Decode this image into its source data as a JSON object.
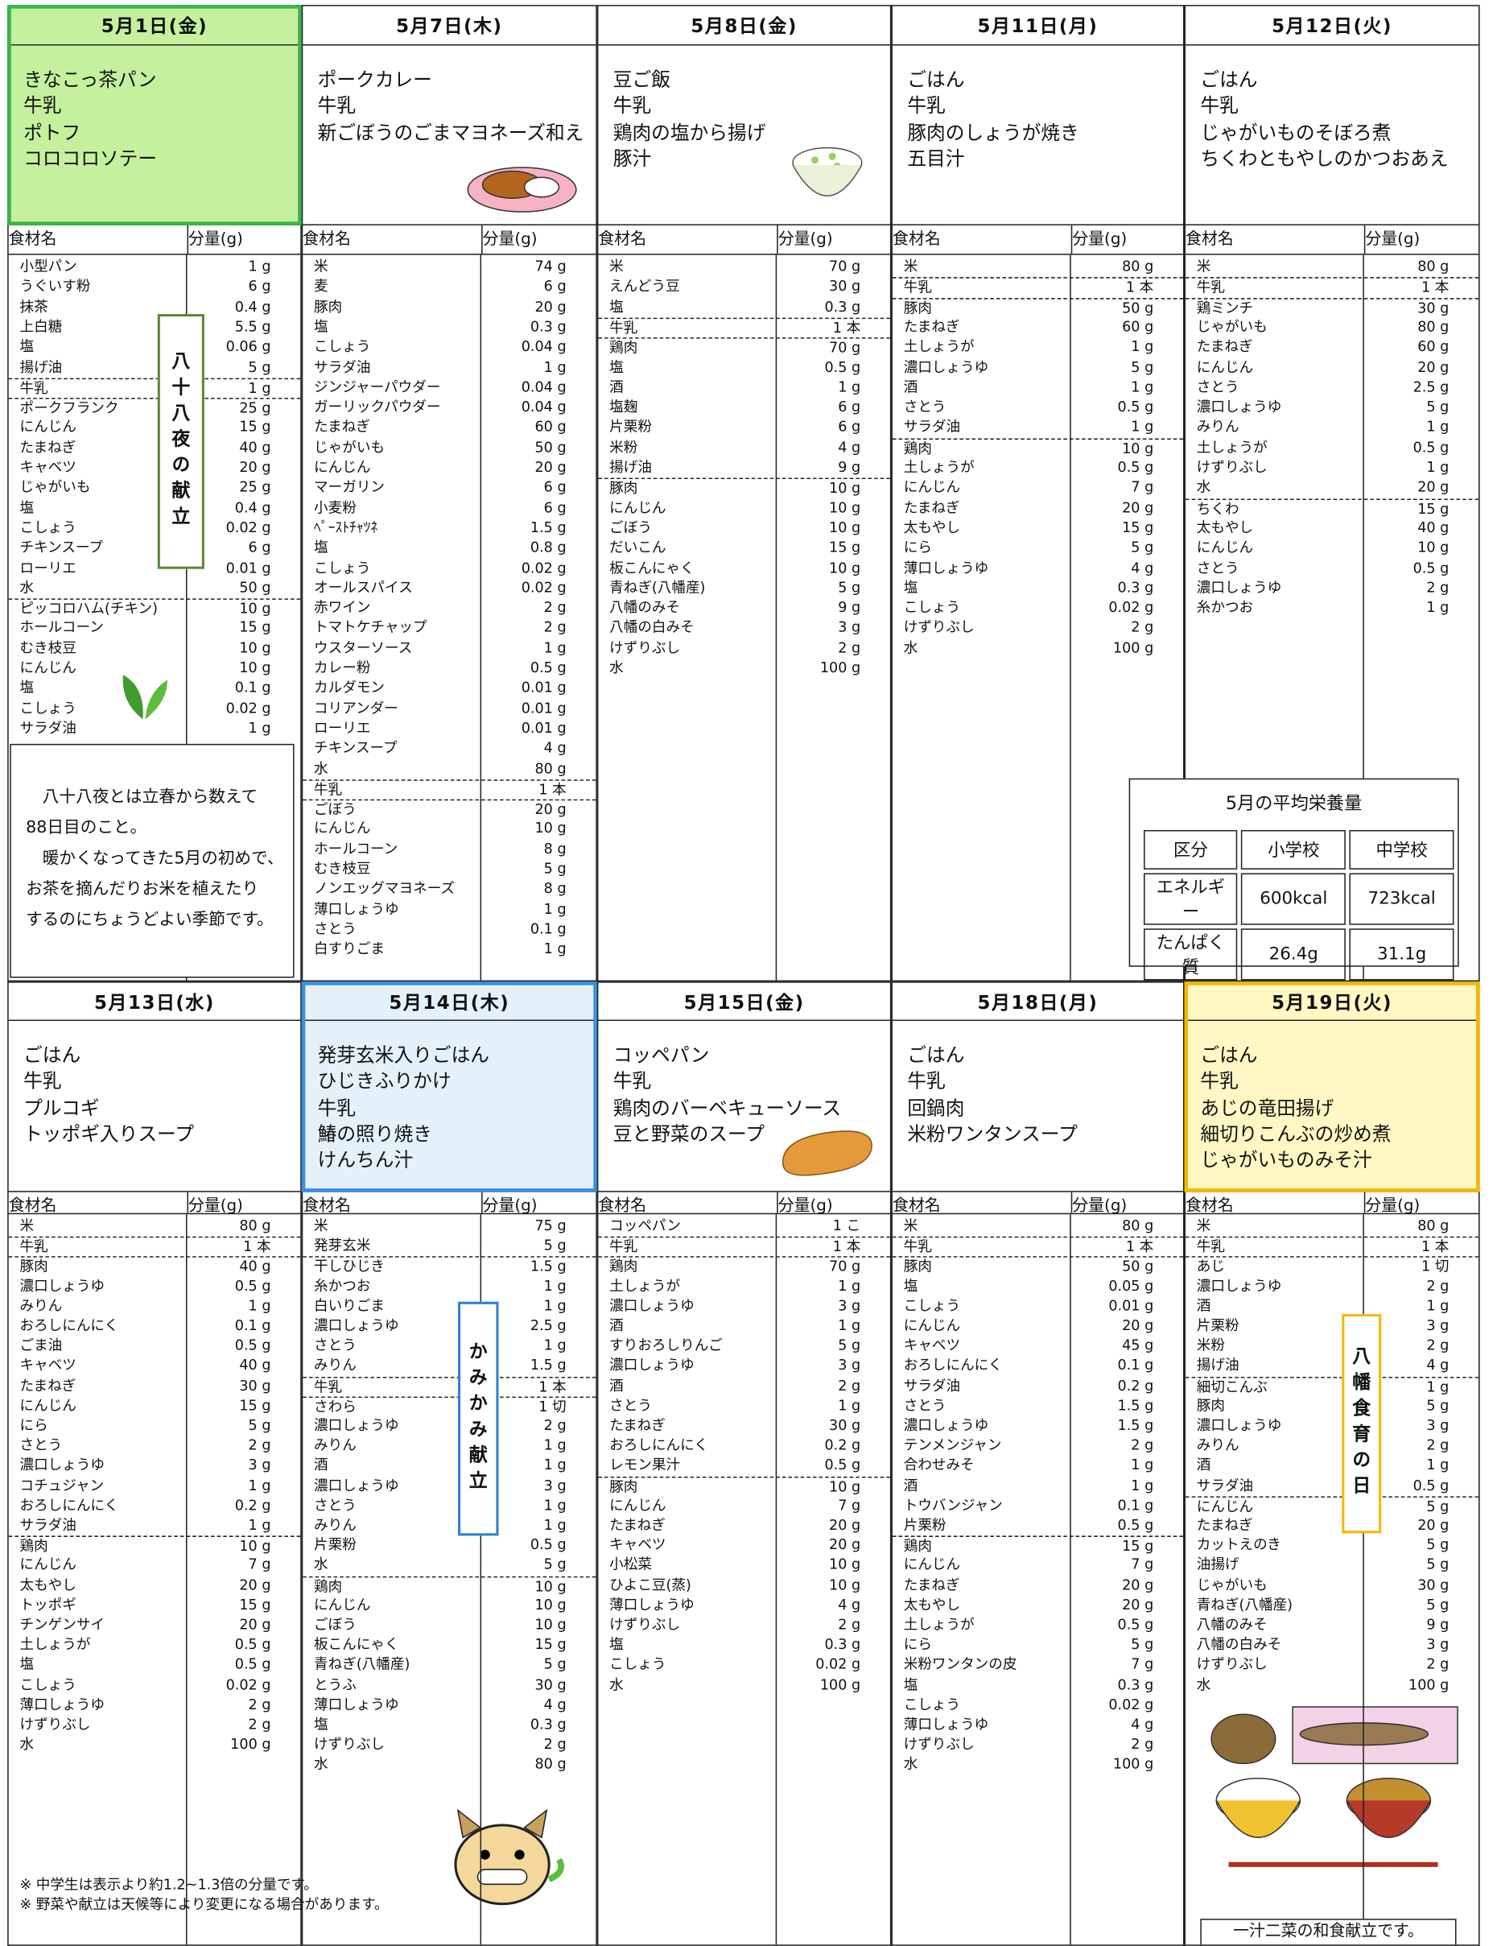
{
  "table_header": {
    "name": "食材名",
    "amount": "分量(g)"
  },
  "days": [
    {
      "date": "5月1日(金)",
      "menu": [
        "きなこっ茶パン",
        "牛乳",
        "ポトフ",
        "コロコロソテー"
      ],
      "groups": [
        [
          [
            "小型パン",
            "1 g"
          ],
          [
            "うぐいす粉",
            "6 g"
          ],
          [
            "抹茶",
            "0.4 g"
          ],
          [
            "上白糖",
            "5.5 g"
          ],
          [
            "塩",
            "0.06 g"
          ],
          [
            "揚げ油",
            "5 g"
          ]
        ],
        [
          [
            "牛乳",
            "1 g"
          ]
        ],
        [
          [
            "ポークフランク",
            "25 g"
          ],
          [
            "にんじん",
            "15 g"
          ],
          [
            "たまねぎ",
            "40 g"
          ],
          [
            "キャベツ",
            "20 g"
          ],
          [
            "じゃがいも",
            "25 g"
          ],
          [
            "塩",
            "0.4 g"
          ],
          [
            "こしょう",
            "0.02 g"
          ],
          [
            "チキンスープ",
            "6 g"
          ],
          [
            "ローリエ",
            "0.01 g"
          ],
          [
            "水",
            "50 g"
          ]
        ],
        [
          [
            "ピッコロハム(チキン)",
            "10 g"
          ],
          [
            "ホールコーン",
            "15 g"
          ],
          [
            "むき枝豆",
            "10 g"
          ],
          [
            "にんじん",
            "10 g"
          ],
          [
            "塩",
            "0.1 g"
          ],
          [
            "こしょう",
            "0.02 g"
          ],
          [
            "サラダ油",
            "1 g"
          ]
        ]
      ]
    },
    {
      "date": "5月7日(木)",
      "menu": [
        "ポークカレー",
        "牛乳",
        "新ごぼうのごまマヨネーズ和え"
      ],
      "groups": [
        [
          [
            "米",
            "74 g"
          ],
          [
            "麦",
            "6 g"
          ],
          [
            "豚肉",
            "20 g"
          ],
          [
            "塩",
            "0.3 g"
          ],
          [
            "こしょう",
            "0.04 g"
          ],
          [
            "サラダ油",
            "1 g"
          ],
          [
            "ジンジャーパウダー",
            "0.04 g"
          ],
          [
            "ガーリックパウダー",
            "0.04 g"
          ],
          [
            "たまねぎ",
            "60 g"
          ],
          [
            "じゃがいも",
            "50 g"
          ],
          [
            "にんじん",
            "20 g"
          ],
          [
            "マーガリン",
            "6 g"
          ],
          [
            "小麦粉",
            "6 g"
          ],
          [
            "ﾍﾟｰｽﾄﾁｬﾂﾈ",
            "1.5 g"
          ],
          [
            "塩",
            "0.8 g"
          ],
          [
            "こしょう",
            "0.02 g"
          ],
          [
            "オールスパイス",
            "0.02 g"
          ],
          [
            "赤ワイン",
            "2 g"
          ],
          [
            "トマトケチャップ",
            "2 g"
          ],
          [
            "ウスターソース",
            "1 g"
          ],
          [
            "カレー粉",
            "0.5 g"
          ],
          [
            "カルダモン",
            "0.01 g"
          ],
          [
            "コリアンダー",
            "0.01 g"
          ],
          [
            "ローリエ",
            "0.01 g"
          ],
          [
            "チキンスープ",
            "4 g"
          ],
          [
            "水",
            "80 g"
          ]
        ],
        [
          [
            "牛乳",
            "1 本"
          ]
        ],
        [
          [
            "ごぼう",
            "20 g"
          ],
          [
            "にんじん",
            "10 g"
          ],
          [
            "ホールコーン",
            "8 g"
          ],
          [
            "むき枝豆",
            "5 g"
          ],
          [
            "ノンエッグマヨネーズ",
            "8 g"
          ],
          [
            "薄口しょうゆ",
            "1 g"
          ],
          [
            "さとう",
            "0.1 g"
          ],
          [
            "白すりごま",
            "1 g"
          ]
        ]
      ]
    },
    {
      "date": "5月8日(金)",
      "menu": [
        "豆ご飯",
        "牛乳",
        "鶏肉の塩から揚げ",
        "豚汁"
      ],
      "groups": [
        [
          [
            "米",
            "70 g"
          ],
          [
            "えんどう豆",
            "30 g"
          ],
          [
            "塩",
            "0.3 g"
          ]
        ],
        [
          [
            "牛乳",
            "1 本"
          ]
        ],
        [
          [
            "鶏肉",
            "70 g"
          ],
          [
            "塩",
            "0.5 g"
          ],
          [
            "酒",
            "1 g"
          ],
          [
            "塩麹",
            "6 g"
          ],
          [
            "片栗粉",
            "6 g"
          ],
          [
            "米粉",
            "4 g"
          ],
          [
            "揚げ油",
            "9 g"
          ]
        ],
        [
          [
            "豚肉",
            "10 g"
          ],
          [
            "にんじん",
            "10 g"
          ],
          [
            "ごぼう",
            "10 g"
          ],
          [
            "だいこん",
            "15 g"
          ],
          [
            "板こんにゃく",
            "10 g"
          ],
          [
            "青ねぎ(八幡産)",
            "5 g"
          ],
          [
            "八幡のみそ",
            "9 g"
          ],
          [
            "八幡の白みそ",
            "3 g"
          ],
          [
            "けずりぶし",
            "2 g"
          ],
          [
            "水",
            "100 g"
          ]
        ]
      ]
    },
    {
      "date": "5月11日(月)",
      "menu": [
        "ごはん",
        "牛乳",
        "豚肉のしょうが焼き",
        "五目汁"
      ],
      "groups": [
        [
          [
            "米",
            "80 g"
          ]
        ],
        [
          [
            "牛乳",
            "1 本"
          ]
        ],
        [
          [
            "豚肉",
            "50 g"
          ],
          [
            "たまねぎ",
            "60 g"
          ],
          [
            "土しょうが",
            "1 g"
          ],
          [
            "濃口しょうゆ",
            "5 g"
          ],
          [
            "酒",
            "1 g"
          ],
          [
            "さとう",
            "0.5 g"
          ],
          [
            "サラダ油",
            "1 g"
          ]
        ],
        [
          [
            "鶏肉",
            "10 g"
          ],
          [
            "土しょうが",
            "0.5 g"
          ],
          [
            "にんじん",
            "7 g"
          ],
          [
            "たまねぎ",
            "20 g"
          ],
          [
            "太もやし",
            "15 g"
          ],
          [
            "にら",
            "5 g"
          ],
          [
            "薄口しょうゆ",
            "4 g"
          ],
          [
            "塩",
            "0.3 g"
          ],
          [
            "こしょう",
            "0.02 g"
          ],
          [
            "けずりぶし",
            "2 g"
          ],
          [
            "水",
            "100 g"
          ]
        ]
      ]
    },
    {
      "date": "5月12日(火)",
      "menu": [
        "ごはん",
        "牛乳",
        "じゃがいものそぼろ煮",
        "ちくわともやしのかつおあえ"
      ],
      "groups": [
        [
          [
            "米",
            "80 g"
          ]
        ],
        [
          [
            "牛乳",
            "1 本"
          ]
        ],
        [
          [
            "鶏ミンチ",
            "30 g"
          ],
          [
            "じゃがいも",
            "80 g"
          ],
          [
            "たまねぎ",
            "60 g"
          ],
          [
            "にんじん",
            "20 g"
          ],
          [
            "さとう",
            "2.5 g"
          ],
          [
            "濃口しょうゆ",
            "5 g"
          ],
          [
            "みりん",
            "1 g"
          ],
          [
            "土しょうが",
            "0.5 g"
          ],
          [
            "けずりぶし",
            "1 g"
          ],
          [
            "水",
            "20 g"
          ]
        ],
        [
          [
            "ちくわ",
            "15 g"
          ],
          [
            "太もやし",
            "40 g"
          ],
          [
            "にんじん",
            "10 g"
          ],
          [
            "さとう",
            "0.5 g"
          ],
          [
            "濃口しょうゆ",
            "2 g"
          ],
          [
            "糸かつお",
            "1 g"
          ]
        ]
      ]
    },
    {
      "date": "5月13日(水)",
      "menu": [
        "ごはん",
        "牛乳",
        "プルコギ",
        "トッポギ入りスープ"
      ],
      "groups": [
        [
          [
            "米",
            "80 g"
          ]
        ],
        [
          [
            "牛乳",
            "1 本"
          ]
        ],
        [
          [
            "豚肉",
            "40 g"
          ],
          [
            "濃口しょうゆ",
            "0.5 g"
          ],
          [
            "みりん",
            "1 g"
          ],
          [
            "おろしにんにく",
            "0.1 g"
          ],
          [
            "ごま油",
            "0.5 g"
          ],
          [
            "キャベツ",
            "40 g"
          ],
          [
            "たまねぎ",
            "30 g"
          ],
          [
            "にんじん",
            "15 g"
          ],
          [
            "にら",
            "5 g"
          ],
          [
            "さとう",
            "2 g"
          ],
          [
            "濃口しょうゆ",
            "3 g"
          ],
          [
            "コチュジャン",
            "1 g"
          ],
          [
            "おろしにんにく",
            "0.2 g"
          ],
          [
            "サラダ油",
            "1 g"
          ]
        ],
        [
          [
            "鶏肉",
            "10 g"
          ],
          [
            "にんじん",
            "7 g"
          ],
          [
            "太もやし",
            "20 g"
          ],
          [
            "トッポギ",
            "15 g"
          ],
          [
            "チンゲンサイ",
            "20 g"
          ],
          [
            "土しょうが",
            "0.5 g"
          ],
          [
            "塩",
            "0.5 g"
          ],
          [
            "こしょう",
            "0.02 g"
          ],
          [
            "薄口しょうゆ",
            "2 g"
          ],
          [
            "けずりぶし",
            "2 g"
          ],
          [
            "水",
            "100 g"
          ]
        ]
      ]
    },
    {
      "date": "5月14日(木)",
      "menu": [
        "発芽玄米入りごはん",
        "ひじきふりかけ",
        "牛乳",
        "鰆の照り焼き",
        "けんちん汁"
      ],
      "groups": [
        [
          [
            "米",
            "75 g"
          ],
          [
            "発芽玄米",
            "5 g"
          ]
        ],
        [
          [
            "干しひじき",
            "1.5 g"
          ],
          [
            "糸かつお",
            "1 g"
          ],
          [
            "白いりごま",
            "1 g"
          ],
          [
            "濃口しょうゆ",
            "2.5 g"
          ],
          [
            "さとう",
            "1 g"
          ],
          [
            "みりん",
            "1.5 g"
          ]
        ],
        [
          [
            "牛乳",
            "1 本"
          ]
        ],
        [
          [
            "さわら",
            "1 切"
          ],
          [
            "濃口しょうゆ",
            "2 g"
          ],
          [
            "みりん",
            "1 g"
          ],
          [
            "酒",
            "1 g"
          ],
          [
            "濃口しょうゆ",
            "3 g"
          ],
          [
            "さとう",
            "1 g"
          ],
          [
            "みりん",
            "1 g"
          ],
          [
            "片栗粉",
            "0.5 g"
          ],
          [
            "水",
            "5 g"
          ]
        ],
        [
          [
            "鶏肉",
            "10 g"
          ],
          [
            "にんじん",
            "10 g"
          ],
          [
            "ごぼう",
            "10 g"
          ],
          [
            "板こんにゃく",
            "15 g"
          ],
          [
            "青ねぎ(八幡産)",
            "5 g"
          ],
          [
            "とうふ",
            "30 g"
          ],
          [
            "薄口しょうゆ",
            "4 g"
          ],
          [
            "塩",
            "0.3 g"
          ],
          [
            "けずりぶし",
            "2 g"
          ],
          [
            "水",
            "80 g"
          ]
        ]
      ]
    },
    {
      "date": "5月15日(金)",
      "menu": [
        "コッペパン",
        "牛乳",
        "鶏肉のバーベキューソース",
        "豆と野菜のスープ"
      ],
      "groups": [
        [
          [
            "コッペパン",
            "1 こ"
          ]
        ],
        [
          [
            "牛乳",
            "1 本"
          ]
        ],
        [
          [
            "鶏肉",
            "70 g"
          ],
          [
            "土しょうが",
            "1 g"
          ],
          [
            "濃口しょうゆ",
            "3 g"
          ],
          [
            "酒",
            "1 g"
          ],
          [
            "すりおろしりんご",
            "5 g"
          ],
          [
            "濃口しょうゆ",
            "3 g"
          ],
          [
            "酒",
            "2 g"
          ],
          [
            "さとう",
            "1 g"
          ],
          [
            "たまねぎ",
            "30 g"
          ],
          [
            "おろしにんにく",
            "0.2 g"
          ],
          [
            "レモン果汁",
            "0.5 g"
          ]
        ],
        [
          [
            "豚肉",
            "10 g"
          ],
          [
            "にんじん",
            "7 g"
          ],
          [
            "たまねぎ",
            "20 g"
          ],
          [
            "キャベツ",
            "20 g"
          ],
          [
            "小松菜",
            "10 g"
          ],
          [
            "ひよこ豆(蒸)",
            "10 g"
          ],
          [
            "薄口しょうゆ",
            "4 g"
          ],
          [
            "けずりぶし",
            "2 g"
          ],
          [
            "塩",
            "0.3 g"
          ],
          [
            "こしょう",
            "0.02 g"
          ],
          [
            "水",
            "100 g"
          ]
        ]
      ]
    },
    {
      "date": "5月18日(月)",
      "menu": [
        "ごはん",
        "牛乳",
        "回鍋肉",
        "米粉ワンタンスープ"
      ],
      "groups": [
        [
          [
            "米",
            "80 g"
          ]
        ],
        [
          [
            "牛乳",
            "1 本"
          ]
        ],
        [
          [
            "豚肉",
            "50 g"
          ],
          [
            "塩",
            "0.05 g"
          ],
          [
            "こしょう",
            "0.01 g"
          ],
          [
            "にんじん",
            "20 g"
          ],
          [
            "キャベツ",
            "45 g"
          ],
          [
            "おろしにんにく",
            "0.1 g"
          ],
          [
            "サラダ油",
            "0.2 g"
          ],
          [
            "さとう",
            "1.5 g"
          ],
          [
            "濃口しょうゆ",
            "1.5 g"
          ],
          [
            "テンメンジャン",
            "2 g"
          ],
          [
            "合わせみそ",
            "1 g"
          ],
          [
            "酒",
            "1 g"
          ],
          [
            "トウバンジャン",
            "0.1 g"
          ],
          [
            "片栗粉",
            "0.5 g"
          ]
        ],
        [
          [
            "鶏肉",
            "15 g"
          ],
          [
            "にんじん",
            "7 g"
          ],
          [
            "たまねぎ",
            "20 g"
          ],
          [
            "太もやし",
            "20 g"
          ],
          [
            "土しょうが",
            "0.5 g"
          ],
          [
            "にら",
            "5 g"
          ],
          [
            "米粉ワンタンの皮",
            "7 g"
          ],
          [
            "塩",
            "0.3 g"
          ],
          [
            "こしょう",
            "0.02 g"
          ],
          [
            "薄口しょうゆ",
            "4 g"
          ],
          [
            "けずりぶし",
            "2 g"
          ],
          [
            "水",
            "100 g"
          ]
        ]
      ]
    },
    {
      "date": "5月19日(火)",
      "menu": [
        "ごはん",
        "牛乳",
        "あじの竜田揚げ",
        "細切りこんぶの炒め煮",
        "じゃがいものみそ汁"
      ],
      "groups": [
        [
          [
            "米",
            "80 g"
          ]
        ],
        [
          [
            "牛乳",
            "1 本"
          ]
        ],
        [
          [
            "あじ",
            "1 切"
          ],
          [
            "濃口しょうゆ",
            "2 g"
          ],
          [
            "酒",
            "1 g"
          ],
          [
            "片栗粉",
            "3 g"
          ],
          [
            "米粉",
            "2 g"
          ],
          [
            "揚げ油",
            "4 g"
          ]
        ],
        [
          [
            "細切こんぶ",
            "1 g"
          ],
          [
            "豚肉",
            "5 g"
          ],
          [
            "濃口しょうゆ",
            "3 g"
          ],
          [
            "みりん",
            "2 g"
          ],
          [
            "酒",
            "1 g"
          ],
          [
            "サラダ油",
            "0.5 g"
          ]
        ],
        [
          [
            "にんじん",
            "5 g"
          ],
          [
            "たまねぎ",
            "20 g"
          ],
          [
            "カットえのき",
            "5 g"
          ],
          [
            "油揚げ",
            "5 g"
          ],
          [
            "じゃがいも",
            "30 g"
          ],
          [
            "青ねぎ(八幡産)",
            "5 g"
          ],
          [
            "八幡のみそ",
            "9 g"
          ],
          [
            "八幡の白みそ",
            "3 g"
          ],
          [
            "けずりぶし",
            "2 g"
          ],
          [
            "水",
            "100 g"
          ]
        ]
      ]
    }
  ],
  "notes": {
    "hachijuhachiya_label": "八十八夜の献立",
    "hachijuhachiya_text": [
      "八十八夜とは立春から数えて",
      "88日目のこと。",
      "暖かくなってきた5月の初めで、",
      "お茶を摘んだりお米を植えたり",
      "するのにちょうどよい季節です。"
    ],
    "nutrition": {
      "title": "5月の平均栄養量",
      "rows": [
        [
          "区分",
          "小学校",
          "中学校"
        ],
        [
          "エネルギー",
          "600kcal",
          "723kcal"
        ],
        [
          "たんぱく質",
          "26.4g",
          "31.1g"
        ]
      ]
    },
    "kamikami_label": "かみかみ献立",
    "yawata_label": "八幡食育の日",
    "washoku_caption": "一汁二菜の和食献立です。",
    "footnotes": [
      "※ 中学生は表示より約1.2~1.3倍の分量です。",
      "※ 野菜や献立は天候等により変更になる場合があります。"
    ]
  }
}
